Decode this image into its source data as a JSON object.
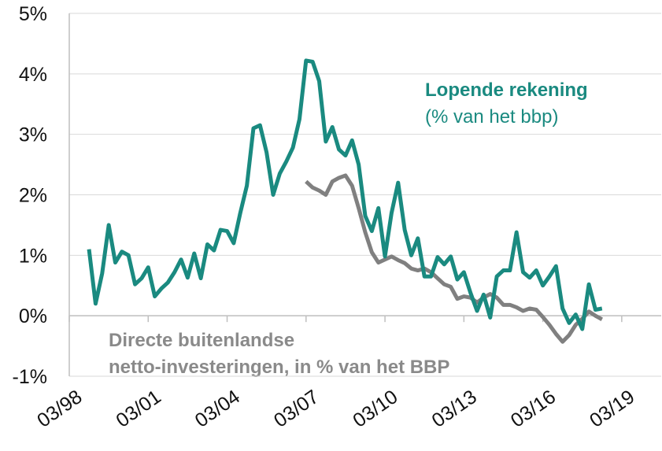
{
  "chart_data": {
    "type": "line",
    "x": [
      "12/98",
      "03/99",
      "06/99",
      "09/99",
      "12/99",
      "03/00",
      "06/00",
      "09/00",
      "12/00",
      "03/01",
      "06/01",
      "09/01",
      "12/01",
      "03/02",
      "06/02",
      "09/02",
      "12/02",
      "03/03",
      "06/03",
      "09/03",
      "12/03",
      "03/04",
      "06/04",
      "09/04",
      "12/04",
      "03/05",
      "06/05",
      "09/05",
      "12/05",
      "03/06",
      "06/06",
      "09/06",
      "12/06",
      "03/07",
      "06/07",
      "09/07",
      "12/07",
      "03/08",
      "06/08",
      "09/08",
      "12/08",
      "03/09",
      "06/09",
      "09/09",
      "12/09",
      "03/10",
      "06/10",
      "09/10",
      "12/10",
      "03/11",
      "06/11",
      "09/11",
      "12/11",
      "03/12",
      "06/12",
      "09/12",
      "12/12",
      "03/13",
      "06/13",
      "09/13",
      "12/13",
      "03/14",
      "06/14",
      "09/14",
      "12/14",
      "03/15",
      "06/15",
      "09/15",
      "12/15",
      "03/16",
      "06/16",
      "09/16",
      "12/16",
      "03/17",
      "06/17",
      "09/17",
      "12/17",
      "03/18",
      "06/18"
    ],
    "series": [
      {
        "name": "Lopende rekening",
        "color": "#1a8a80",
        "values": [
          1.1,
          0.2,
          0.7,
          1.5,
          0.88,
          1.06,
          1.0,
          0.52,
          0.62,
          0.8,
          0.32,
          0.45,
          0.55,
          0.72,
          0.93,
          0.63,
          1.03,
          0.62,
          1.18,
          1.08,
          1.42,
          1.4,
          1.2,
          1.7,
          2.15,
          3.1,
          3.15,
          2.7,
          2.0,
          2.35,
          2.55,
          2.78,
          3.25,
          4.22,
          4.2,
          3.88,
          2.88,
          3.12,
          2.75,
          2.65,
          2.9,
          2.5,
          1.65,
          1.4,
          1.78,
          0.98,
          1.7,
          2.2,
          1.42,
          1.0,
          1.28,
          0.65,
          0.65,
          0.97,
          0.85,
          0.98,
          0.6,
          0.72,
          0.38,
          0.08,
          0.35,
          -0.03,
          0.65,
          0.75,
          0.75,
          1.38,
          0.72,
          0.63,
          0.75,
          0.5,
          0.65,
          0.82,
          0.12,
          -0.12,
          0.02,
          -0.22,
          0.52,
          0.1,
          0.12
        ]
      },
      {
        "name": "Directe buitenlandse netto-investeringen",
        "color": "#808080",
        "values": [
          null,
          null,
          null,
          null,
          null,
          null,
          null,
          null,
          null,
          null,
          null,
          null,
          null,
          null,
          null,
          null,
          null,
          null,
          null,
          null,
          null,
          null,
          null,
          null,
          null,
          null,
          null,
          null,
          null,
          null,
          null,
          null,
          null,
          2.22,
          2.12,
          2.07,
          2.0,
          2.22,
          2.28,
          2.32,
          2.15,
          1.78,
          1.38,
          1.05,
          0.88,
          0.93,
          0.98,
          0.92,
          0.87,
          0.78,
          0.75,
          0.78,
          0.72,
          0.62,
          0.52,
          0.48,
          0.28,
          0.32,
          0.3,
          0.22,
          0.3,
          0.36,
          0.3,
          0.18,
          0.18,
          0.14,
          0.08,
          0.12,
          0.1,
          -0.02,
          -0.15,
          -0.3,
          -0.43,
          -0.32,
          -0.15,
          -0.05,
          0.07,
          0.0,
          -0.06
        ]
      }
    ],
    "annotations": [
      "Lopende rekening",
      "(% van het bbp)",
      "Directe buitenlandse",
      "netto-investeringen, in % van het BBP"
    ],
    "xlim": [
      "03/98",
      "09/20"
    ],
    "xticks": [
      "03/98",
      "03/01",
      "03/04",
      "03/07",
      "03/10",
      "03/13",
      "03/16",
      "03/19"
    ],
    "ylim": [
      -1,
      5
    ],
    "yticks": [
      {
        "value": -1,
        "label": "-1%"
      },
      {
        "value": 0,
        "label": "0%"
      },
      {
        "value": 1,
        "label": "1%"
      },
      {
        "value": 2,
        "label": "2%"
      },
      {
        "value": 3,
        "label": "3%"
      },
      {
        "value": 4,
        "label": "4%"
      },
      {
        "value": 5,
        "label": "5%"
      }
    ],
    "grid": true
  }
}
